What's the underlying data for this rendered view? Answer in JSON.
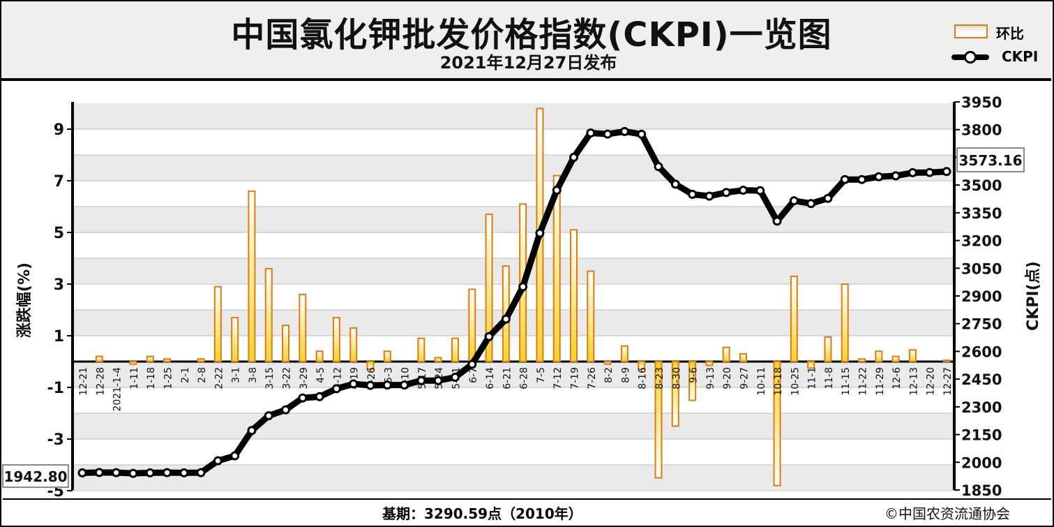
{
  "header": {
    "title": "中国氯化钾批发价格指数(CKPI)一览图",
    "subtitle": "2021年12月27日发布"
  },
  "legend": {
    "bar_label": "环比",
    "line_label": "CKPI"
  },
  "footer": {
    "base_period": "基期：3290.59点（2010年）",
    "copyright": "©中国农资流通协会"
  },
  "colors": {
    "bar_stroke": "#e07a10",
    "bar_fill_top": "#ffffff",
    "bar_fill_bottom": "#f5d330",
    "line": "#000000",
    "band": "#eaeaea"
  },
  "chart_data": {
    "type": "bar+line",
    "ylabel_left": "涨跌幅(%)",
    "ylabel_right": "CKPI(点)",
    "left_ticks": [
      "9",
      "7",
      "5",
      "3",
      "1",
      "-1",
      "-3",
      "-5"
    ],
    "left_tick_values": [
      9,
      7,
      5,
      3,
      1,
      -1,
      -3,
      -5
    ],
    "right_ticks": [
      "3950",
      "3800",
      "3650",
      "3500",
      "3350",
      "3200",
      "3050",
      "2900",
      "2750",
      "2600",
      "2450",
      "2300",
      "2150",
      "2000",
      "1850"
    ],
    "right_tick_values": [
      3950,
      3800,
      3650,
      3500,
      3350,
      3200,
      3050,
      2900,
      2750,
      2600,
      2450,
      2300,
      2150,
      2000,
      1850
    ],
    "ylim_left": [
      -5,
      10
    ],
    "ylim_right": [
      1850,
      3950
    ],
    "categories": [
      "12-21",
      "12-28",
      "2021-1-4",
      "1-11",
      "1-18",
      "1-25",
      "2-1",
      "2-8",
      "2-22",
      "3-1",
      "3-8",
      "3-15",
      "3-22",
      "3-29",
      "4-5",
      "4-12",
      "4-19",
      "4-26",
      "5-3",
      "5-10",
      "5-17",
      "5-24",
      "5-31",
      "6-7",
      "6-14",
      "6-21",
      "6-28",
      "7-5",
      "7-12",
      "7-19",
      "7-26",
      "8-2",
      "8-9",
      "8-16",
      "8-23",
      "8-30",
      "9-6",
      "9-13",
      "9-20",
      "9-27",
      "10-11",
      "10-18",
      "10-25",
      "11-1",
      "11-8",
      "11-15",
      "11-22",
      "11-29",
      "12-6",
      "12-13",
      "12-20",
      "12-27"
    ],
    "series": [
      {
        "name": "环比",
        "kind": "bar",
        "values": [
          0.0,
          0.2,
          0.0,
          -0.1,
          0.2,
          0.1,
          0.0,
          0.1,
          2.9,
          1.7,
          6.6,
          3.6,
          1.4,
          2.6,
          0.4,
          1.7,
          1.3,
          -0.3,
          0.4,
          0.0,
          0.9,
          0.15,
          0.9,
          2.8,
          5.7,
          3.7,
          6.1,
          9.8,
          7.2,
          5.1,
          3.5,
          -0.1,
          0.6,
          -0.3,
          -4.5,
          -2.5,
          -1.5,
          -0.15,
          0.55,
          0.3,
          0.0,
          -4.8,
          3.3,
          -0.25,
          0.95,
          3.0,
          0.1,
          0.4,
          0.2,
          0.45,
          0.0,
          0.05
        ]
      },
      {
        "name": "CKPI",
        "kind": "line",
        "values": [
          1942.8,
          1945,
          1944,
          1940,
          1943,
          1944,
          1943,
          1944,
          2008,
          2035,
          2172,
          2252,
          2284,
          2348,
          2355,
          2398,
          2424,
          2416,
          2418,
          2418,
          2442,
          2442,
          2460,
          2530,
          2680,
          2775,
          2950,
          3240,
          3472,
          3650,
          3782,
          3776,
          3790,
          3775,
          3600,
          3505,
          3450,
          3440,
          3460,
          3472,
          3470,
          3305,
          3415,
          3400,
          3428,
          3530,
          3530,
          3545,
          3550,
          3567,
          3568,
          3573.16
        ]
      }
    ],
    "annotations": [
      "1942.80",
      "3573.16"
    ]
  }
}
